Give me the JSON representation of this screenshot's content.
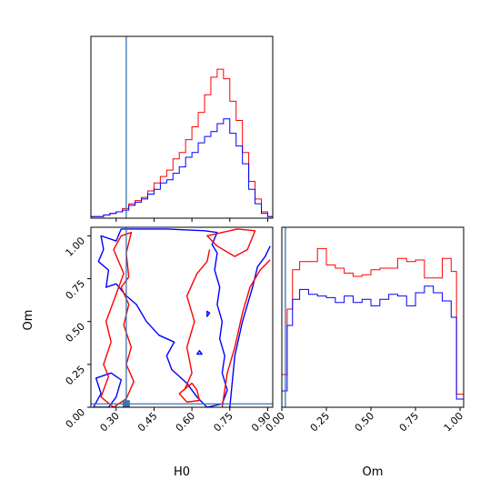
{
  "chart_data": {
    "type": "corner",
    "parameters": [
      "H0",
      "Om"
    ],
    "truth": {
      "H0": 0.34,
      "Om": 0.02,
      "color": "#3b75af"
    },
    "series_colors": {
      "red": "#ff0000",
      "blue": "#0000ff"
    },
    "panels": {
      "h0_hist": {
        "xlim": [
          0.2,
          0.92
        ],
        "bins": [
          0.2,
          0.225,
          0.25,
          0.275,
          0.3,
          0.325,
          0.35,
          0.375,
          0.4,
          0.425,
          0.45,
          0.475,
          0.5,
          0.525,
          0.55,
          0.575,
          0.6,
          0.625,
          0.65,
          0.675,
          0.7,
          0.725,
          0.75,
          0.775,
          0.8,
          0.825,
          0.85,
          0.875,
          0.9,
          0.92
        ],
        "red": [
          1,
          1,
          2,
          3,
          4,
          6,
          9,
          11,
          13,
          17,
          22,
          26,
          30,
          37,
          41,
          49,
          57,
          66,
          77,
          88,
          93,
          87,
          73,
          61,
          41,
          23,
          12,
          4,
          1
        ],
        "blue": [
          1,
          1,
          2,
          3,
          4,
          5,
          8,
          10,
          12,
          15,
          18,
          22,
          24,
          28,
          32,
          38,
          41,
          47,
          51,
          54,
          59,
          62,
          53,
          45,
          34,
          18,
          9,
          3,
          1
        ]
      },
      "om_hist": {
        "xlim": [
          0.0,
          1.02
        ],
        "bins": [
          0,
          0.03,
          0.06,
          0.1,
          0.15,
          0.2,
          0.25,
          0.3,
          0.35,
          0.4,
          0.45,
          0.5,
          0.55,
          0.6,
          0.65,
          0.7,
          0.75,
          0.8,
          0.85,
          0.9,
          0.95,
          0.98,
          1.02
        ],
        "red": [
          20,
          60,
          84,
          89,
          89,
          97,
          87,
          85,
          82,
          80,
          81,
          84,
          85,
          85,
          91,
          89,
          90,
          79,
          79,
          91,
          83,
          8
        ],
        "blue": [
          10,
          50,
          66,
          72,
          69,
          68,
          67,
          64,
          68,
          64,
          66,
          62,
          66,
          69,
          68,
          62,
          70,
          74,
          70,
          65,
          55,
          5
        ]
      },
      "joint": {
        "xlim": [
          0.2,
          0.92
        ],
        "ylim": [
          0.0,
          1.05
        ]
      }
    },
    "ticks": {
      "H0": [
        "0.30",
        "0.45",
        "0.60",
        "0.75",
        "0.90"
      ],
      "H0_values": [
        0.3,
        0.45,
        0.6,
        0.75,
        0.9
      ],
      "Om": [
        "0.00",
        "0.25",
        "0.50",
        "0.75",
        "1.00"
      ],
      "Om_values": [
        0.0,
        0.25,
        0.5,
        0.75,
        1.0
      ]
    },
    "xlabel_h0": "H0",
    "xlabel_om": "Om",
    "ylabel_om": "Om"
  }
}
